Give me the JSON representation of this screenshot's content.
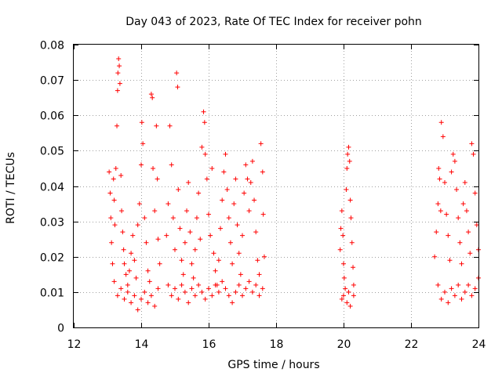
{
  "chart_data": {
    "type": "scatter",
    "title": "Day 043 of 2023, Rate Of TEC Index for receiver pohn",
    "xlabel": "GPS time / hours",
    "ylabel": "ROTI / TECUs",
    "xlim": [
      12,
      24
    ],
    "ylim": [
      0,
      0.08
    ],
    "x_ticks": [
      12,
      14,
      16,
      18,
      20,
      22,
      24
    ],
    "x_tick_labels": [
      "12",
      "14",
      "16",
      "18",
      "20",
      "22",
      "24"
    ],
    "y_ticks": [
      0,
      0.01,
      0.02,
      0.03,
      0.04,
      0.05,
      0.06,
      0.07,
      0.08
    ],
    "y_tick_labels": [
      "0",
      "0.01",
      "0.02",
      "0.03",
      "0.04",
      "0.05",
      "0.06",
      "0.07",
      "0.08"
    ],
    "grid": true,
    "marker": "+",
    "color": "#ff0000",
    "series": [
      {
        "name": "ROTI",
        "points": [
          [
            13.05,
            0.044
          ],
          [
            13.08,
            0.038
          ],
          [
            13.1,
            0.031
          ],
          [
            13.12,
            0.024
          ],
          [
            13.15,
            0.018
          ],
          [
            13.18,
            0.042
          ],
          [
            13.2,
            0.036
          ],
          [
            13.22,
            0.029
          ],
          [
            13.25,
            0.045
          ],
          [
            13.28,
            0.057
          ],
          [
            13.3,
            0.067
          ],
          [
            13.31,
            0.072
          ],
          [
            13.33,
            0.076
          ],
          [
            13.35,
            0.074
          ],
          [
            13.37,
            0.069
          ],
          [
            13.4,
            0.043
          ],
          [
            13.42,
            0.033
          ],
          [
            13.45,
            0.027
          ],
          [
            13.48,
            0.022
          ],
          [
            13.5,
            0.018
          ],
          [
            13.55,
            0.015
          ],
          [
            13.6,
            0.012
          ],
          [
            13.65,
            0.016
          ],
          [
            13.7,
            0.021
          ],
          [
            13.75,
            0.026
          ],
          [
            13.8,
            0.019
          ],
          [
            13.85,
            0.014
          ],
          [
            13.9,
            0.029
          ],
          [
            13.95,
            0.035
          ],
          [
            14.0,
            0.046
          ],
          [
            14.02,
            0.058
          ],
          [
            14.05,
            0.052
          ],
          [
            14.1,
            0.031
          ],
          [
            14.15,
            0.024
          ],
          [
            14.2,
            0.016
          ],
          [
            14.25,
            0.013
          ],
          [
            14.3,
            0.066
          ],
          [
            14.33,
            0.065
          ],
          [
            14.35,
            0.045
          ],
          [
            14.4,
            0.033
          ],
          [
            14.45,
            0.057
          ],
          [
            14.48,
            0.042
          ],
          [
            14.5,
            0.025
          ],
          [
            14.55,
            0.018
          ],
          [
            13.2,
            0.013
          ],
          [
            13.3,
            0.009
          ],
          [
            13.4,
            0.011
          ],
          [
            13.5,
            0.008
          ],
          [
            13.6,
            0.01
          ],
          [
            13.7,
            0.007
          ],
          [
            13.8,
            0.009
          ],
          [
            13.9,
            0.005
          ],
          [
            14.0,
            0.008
          ],
          [
            14.1,
            0.01
          ],
          [
            14.2,
            0.007
          ],
          [
            14.3,
            0.009
          ],
          [
            14.4,
            0.006
          ],
          [
            14.5,
            0.011
          ],
          [
            14.75,
            0.026
          ],
          [
            14.8,
            0.035
          ],
          [
            14.85,
            0.057
          ],
          [
            14.9,
            0.046
          ],
          [
            14.95,
            0.031
          ],
          [
            15.0,
            0.022
          ],
          [
            15.05,
            0.072
          ],
          [
            15.08,
            0.068
          ],
          [
            15.1,
            0.039
          ],
          [
            15.15,
            0.028
          ],
          [
            15.2,
            0.019
          ],
          [
            15.25,
            0.015
          ],
          [
            15.3,
            0.024
          ],
          [
            15.35,
            0.033
          ],
          [
            15.4,
            0.041
          ],
          [
            15.45,
            0.027
          ],
          [
            15.5,
            0.018
          ],
          [
            15.55,
            0.014
          ],
          [
            15.6,
            0.022
          ],
          [
            15.65,
            0.031
          ],
          [
            15.7,
            0.038
          ],
          [
            15.75,
            0.025
          ],
          [
            15.8,
            0.051
          ],
          [
            15.85,
            0.061
          ],
          [
            15.88,
            0.058
          ],
          [
            15.9,
            0.049
          ],
          [
            15.95,
            0.042
          ],
          [
            16.0,
            0.032
          ],
          [
            16.05,
            0.026
          ],
          [
            16.1,
            0.045
          ],
          [
            16.15,
            0.021
          ],
          [
            16.2,
            0.016
          ],
          [
            16.25,
            0.012
          ],
          [
            16.3,
            0.019
          ],
          [
            16.35,
            0.028
          ],
          [
            16.4,
            0.036
          ],
          [
            16.45,
            0.044
          ],
          [
            16.5,
            0.049
          ],
          [
            16.55,
            0.039
          ],
          [
            16.6,
            0.031
          ],
          [
            16.65,
            0.024
          ],
          [
            16.7,
            0.018
          ],
          [
            16.75,
            0.035
          ],
          [
            16.8,
            0.042
          ],
          [
            16.85,
            0.029
          ],
          [
            16.9,
            0.021
          ],
          [
            16.95,
            0.015
          ],
          [
            17.0,
            0.026
          ],
          [
            17.05,
            0.038
          ],
          [
            17.1,
            0.046
          ],
          [
            17.15,
            0.042
          ],
          [
            17.2,
            0.033
          ],
          [
            17.25,
            0.041
          ],
          [
            17.3,
            0.047
          ],
          [
            17.35,
            0.036
          ],
          [
            17.4,
            0.027
          ],
          [
            17.45,
            0.019
          ],
          [
            17.5,
            0.015
          ],
          [
            17.55,
            0.052
          ],
          [
            17.6,
            0.044
          ],
          [
            17.62,
            0.032
          ],
          [
            17.65,
            0.02
          ],
          [
            14.8,
            0.012
          ],
          [
            14.9,
            0.009
          ],
          [
            15.0,
            0.011
          ],
          [
            15.1,
            0.008
          ],
          [
            15.2,
            0.012
          ],
          [
            15.3,
            0.01
          ],
          [
            15.4,
            0.007
          ],
          [
            15.5,
            0.011
          ],
          [
            15.6,
            0.009
          ],
          [
            15.7,
            0.012
          ],
          [
            15.8,
            0.01
          ],
          [
            15.9,
            0.008
          ],
          [
            16.0,
            0.011
          ],
          [
            16.1,
            0.009
          ],
          [
            16.2,
            0.012
          ],
          [
            16.3,
            0.01
          ],
          [
            16.4,
            0.013
          ],
          [
            16.5,
            0.011
          ],
          [
            16.6,
            0.009
          ],
          [
            16.7,
            0.007
          ],
          [
            16.8,
            0.01
          ],
          [
            16.9,
            0.012
          ],
          [
            17.0,
            0.009
          ],
          [
            17.1,
            0.011
          ],
          [
            17.2,
            0.013
          ],
          [
            17.3,
            0.01
          ],
          [
            17.4,
            0.012
          ],
          [
            17.5,
            0.009
          ],
          [
            17.6,
            0.011
          ],
          [
            19.9,
            0.022
          ],
          [
            19.92,
            0.028
          ],
          [
            19.95,
            0.033
          ],
          [
            19.98,
            0.026
          ],
          [
            20.0,
            0.018
          ],
          [
            20.02,
            0.014
          ],
          [
            20.05,
            0.011
          ],
          [
            20.08,
            0.039
          ],
          [
            20.1,
            0.045
          ],
          [
            20.12,
            0.049
          ],
          [
            20.15,
            0.051
          ],
          [
            20.18,
            0.047
          ],
          [
            20.2,
            0.036
          ],
          [
            20.22,
            0.031
          ],
          [
            20.25,
            0.024
          ],
          [
            20.28,
            0.017
          ],
          [
            20.3,
            0.012
          ],
          [
            20.0,
            0.009
          ],
          [
            20.1,
            0.007
          ],
          [
            20.2,
            0.006
          ],
          [
            20.3,
            0.009
          ],
          [
            19.95,
            0.008
          ],
          [
            20.15,
            0.01
          ],
          [
            22.7,
            0.02
          ],
          [
            22.75,
            0.027
          ],
          [
            22.8,
            0.035
          ],
          [
            22.82,
            0.045
          ],
          [
            22.85,
            0.042
          ],
          [
            22.88,
            0.033
          ],
          [
            22.9,
            0.058
          ],
          [
            22.95,
            0.054
          ],
          [
            23.0,
            0.041
          ],
          [
            23.05,
            0.032
          ],
          [
            23.1,
            0.026
          ],
          [
            23.15,
            0.019
          ],
          [
            23.2,
            0.044
          ],
          [
            23.25,
            0.049
          ],
          [
            23.3,
            0.047
          ],
          [
            23.35,
            0.039
          ],
          [
            23.4,
            0.031
          ],
          [
            23.45,
            0.024
          ],
          [
            23.5,
            0.018
          ],
          [
            23.55,
            0.035
          ],
          [
            23.6,
            0.041
          ],
          [
            23.65,
            0.033
          ],
          [
            23.7,
            0.027
          ],
          [
            23.75,
            0.021
          ],
          [
            23.8,
            0.052
          ],
          [
            23.85,
            0.049
          ],
          [
            23.9,
            0.038
          ],
          [
            23.95,
            0.029
          ],
          [
            24.0,
            0.022
          ],
          [
            22.8,
            0.012
          ],
          [
            22.9,
            0.008
          ],
          [
            23.0,
            0.01
          ],
          [
            23.1,
            0.007
          ],
          [
            23.2,
            0.011
          ],
          [
            23.3,
            0.009
          ],
          [
            23.4,
            0.012
          ],
          [
            23.5,
            0.008
          ],
          [
            23.6,
            0.01
          ],
          [
            23.7,
            0.012
          ],
          [
            23.8,
            0.009
          ],
          [
            23.9,
            0.011
          ],
          [
            24.0,
            0.014
          ]
        ]
      }
    ]
  }
}
